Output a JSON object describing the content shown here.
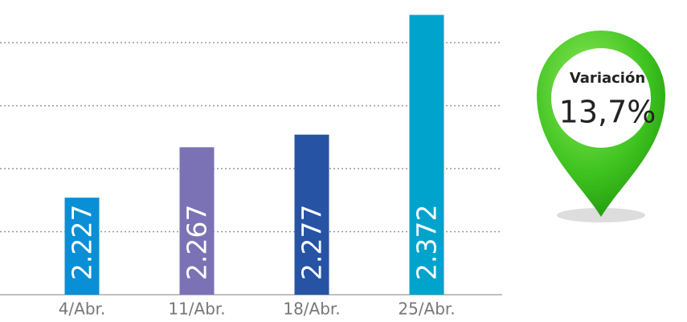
{
  "chart_data": {
    "type": "bar",
    "categories": [
      "4/Abr.",
      "11/Abr.",
      "18/Abr.",
      "25/Abr."
    ],
    "values": [
      2.227,
      2.267,
      2.277,
      2.372
    ],
    "colors": [
      "#0a8fd6",
      "#7b72b5",
      "#2653a4",
      "#00a3cc"
    ],
    "ylim": [
      2.15,
      2.38
    ],
    "yticks": [
      2.2,
      2.25,
      2.3,
      2.35
    ],
    "grid": true,
    "annotation": {
      "label": "Variación",
      "value": "13,7%"
    }
  }
}
